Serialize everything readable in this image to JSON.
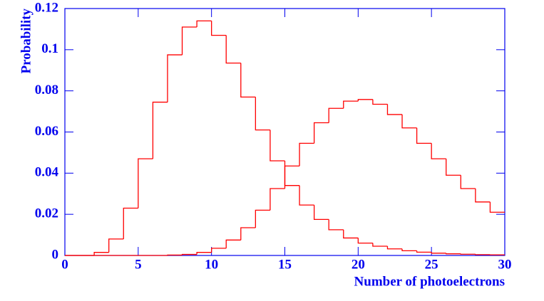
{
  "chart_data": {
    "type": "histogram",
    "xlabel": "Number of photoelectrons",
    "ylabel": "Probability",
    "bins": [
      0,
      1,
      2,
      3,
      4,
      5,
      6,
      7,
      8,
      9,
      10,
      11,
      12,
      13,
      14,
      15,
      16,
      17,
      18,
      19,
      20,
      21,
      22,
      23,
      24,
      25,
      26,
      27,
      28,
      29,
      30
    ],
    "series": [
      {
        "color": "#ff0000",
        "values": [
          0,
          0,
          0.0015,
          0.008,
          0.023,
          0.047,
          0.0745,
          0.0975,
          0.111,
          0.114,
          0.107,
          0.0935,
          0.077,
          0.061,
          0.046,
          0.034,
          0.0245,
          0.0175,
          0.0125,
          0.0085,
          0.006,
          0.0045,
          0.0032,
          0.0023,
          0.0016,
          0.0011,
          0.0008,
          0.0006,
          0.0004,
          0.0003
        ]
      },
      {
        "color": "#ff0000",
        "values": [
          0,
          0,
          0,
          0,
          0,
          0,
          0,
          0.0002,
          0.0005,
          0.0015,
          0.0035,
          0.0075,
          0.0135,
          0.022,
          0.0325,
          0.0435,
          0.0545,
          0.0645,
          0.0715,
          0.075,
          0.0758,
          0.0735,
          0.0685,
          0.062,
          0.0545,
          0.047,
          0.039,
          0.0325,
          0.026,
          0.021
        ]
      }
    ],
    "xlim": [
      0,
      30
    ],
    "ylim": [
      0,
      0.12
    ],
    "xticks": [
      0,
      5,
      10,
      15,
      20,
      25,
      30
    ],
    "yticks": [
      0,
      0.02,
      0.04,
      0.06,
      0.08,
      0.1,
      0.12
    ]
  }
}
